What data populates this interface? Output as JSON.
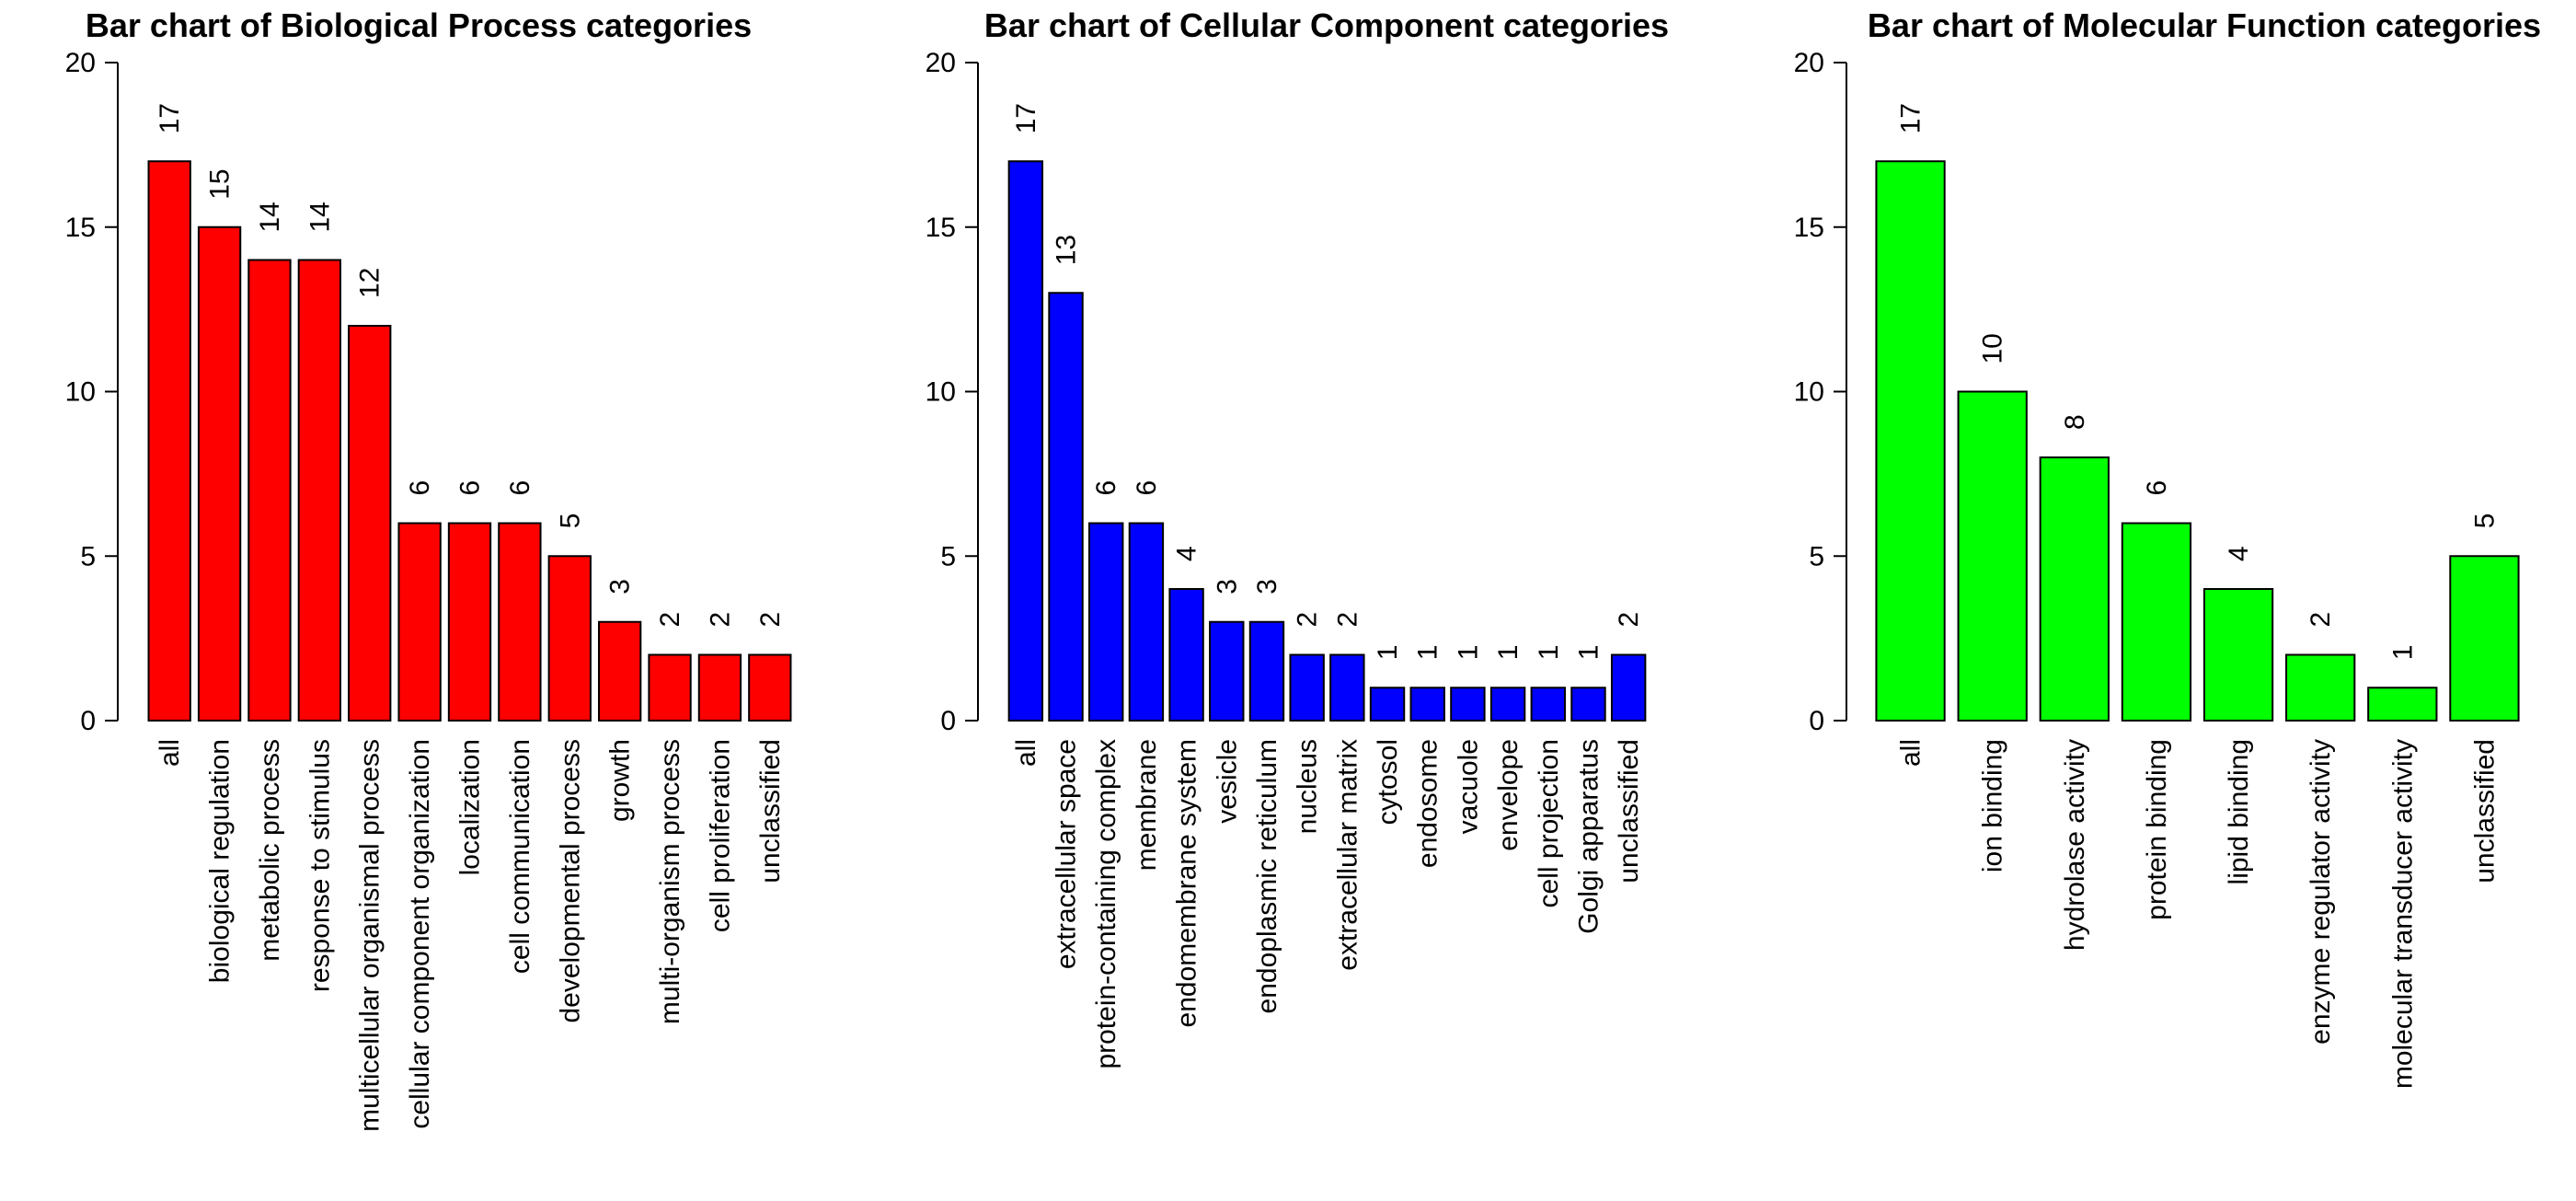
{
  "chart_data": [
    {
      "type": "bar",
      "title": "Bar chart of Biological Process categories",
      "color": "#ff0000",
      "ylim": [
        0,
        20
      ],
      "yticks": [
        0,
        5,
        10,
        15,
        20
      ],
      "categories": [
        "all",
        "biological regulation",
        "metabolic process",
        "response to stimulus",
        "multicellular organismal process",
        "cellular component organization",
        "localization",
        "cell communication",
        "developmental process",
        "growth",
        "multi-organism process",
        "cell proliferation",
        "unclassified"
      ],
      "values": [
        17,
        15,
        14,
        14,
        12,
        6,
        6,
        6,
        5,
        3,
        2,
        2,
        2
      ],
      "xlabel": "",
      "ylabel": "",
      "grid": false
    },
    {
      "type": "bar",
      "title": "Bar chart of Cellular Component categories",
      "color": "#0000ff",
      "ylim": [
        0,
        20
      ],
      "yticks": [
        0,
        5,
        10,
        15,
        20
      ],
      "categories": [
        "all",
        "extracellular space",
        "protein-containing complex",
        "membrane",
        "endomembrane system",
        "vesicle",
        "endoplasmic reticulum",
        "nucleus",
        "extracellular matrix",
        "cytosol",
        "endosome",
        "vacuole",
        "envelope",
        "cell projection",
        "Golgi apparatus",
        "unclassified"
      ],
      "values": [
        17,
        13,
        6,
        6,
        4,
        3,
        3,
        2,
        2,
        1,
        1,
        1,
        1,
        1,
        1,
        2
      ],
      "xlabel": "",
      "ylabel": "",
      "grid": false
    },
    {
      "type": "bar",
      "title": "Bar chart of Molecular Function categories",
      "color": "#00ff00",
      "ylim": [
        0,
        20
      ],
      "yticks": [
        0,
        5,
        10,
        15,
        20
      ],
      "categories": [
        "all",
        "ion binding",
        "hydrolase activity",
        "protein binding",
        "lipid binding",
        "enzyme regulator activity",
        "molecular transducer activity",
        "unclassified"
      ],
      "values": [
        17,
        10,
        8,
        6,
        4,
        2,
        1,
        5
      ],
      "xlabel": "",
      "ylabel": "",
      "grid": false
    }
  ]
}
